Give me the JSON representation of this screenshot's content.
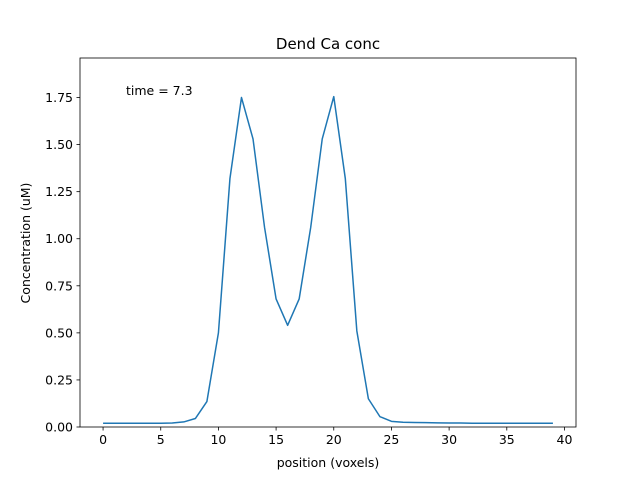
{
  "chart_data": {
    "type": "line",
    "title": "Dend Ca conc",
    "xlabel": "position (voxels)",
    "ylabel": "Concentration (uM)",
    "annotation": "time = 7.3",
    "xlim": [
      -2,
      41
    ],
    "ylim": [
      0,
      1.96
    ],
    "x_ticks": [
      0,
      5,
      10,
      15,
      20,
      25,
      30,
      35,
      40
    ],
    "x_tick_labels": [
      "0",
      "5",
      "10",
      "15",
      "20",
      "25",
      "30",
      "35",
      "40"
    ],
    "y_ticks": [
      0.0,
      0.25,
      0.5,
      0.75,
      1.0,
      1.25,
      1.5,
      1.75
    ],
    "y_tick_labels": [
      "0.00",
      "0.25",
      "0.50",
      "0.75",
      "1.00",
      "1.25",
      "1.50",
      "1.75"
    ],
    "grid": false,
    "colors": {
      "line": "#1f77b4",
      "axes": "#000000",
      "background": "#ffffff"
    },
    "series": [
      {
        "x": [
          0,
          1,
          2,
          3,
          4,
          5,
          6,
          7,
          8,
          9,
          10,
          11,
          12,
          13,
          14,
          15,
          16,
          17,
          18,
          19,
          20,
          21,
          22,
          23,
          24,
          25,
          26,
          27,
          28,
          29,
          30,
          31,
          32,
          33,
          34,
          35,
          36,
          37,
          38,
          39
        ],
        "values": [
          0.02,
          0.02,
          0.02,
          0.02,
          0.02,
          0.02,
          0.021,
          0.027,
          0.045,
          0.135,
          0.5,
          1.32,
          1.75,
          1.53,
          1.06,
          0.68,
          0.54,
          0.68,
          1.06,
          1.53,
          1.755,
          1.32,
          0.51,
          0.15,
          0.055,
          0.03,
          0.025,
          0.024,
          0.023,
          0.022,
          0.021,
          0.021,
          0.02,
          0.02,
          0.02,
          0.02,
          0.02,
          0.02,
          0.02,
          0.02
        ]
      }
    ]
  }
}
